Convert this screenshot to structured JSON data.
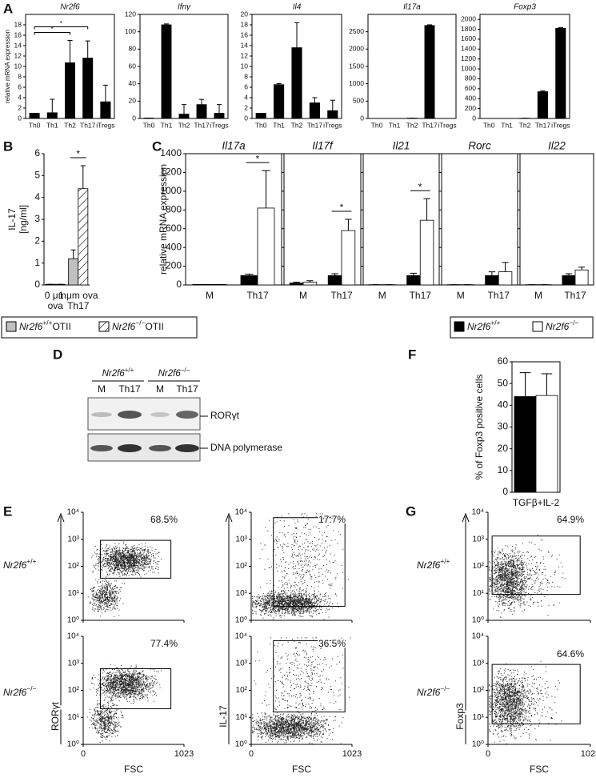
{
  "panel_labels": [
    "A",
    "B",
    "C",
    "D",
    "E",
    "F",
    "G"
  ],
  "chart_data": [
    {
      "type": "bar",
      "title": "Nr2f6",
      "ylabel": "relative mRNA expression",
      "categories": [
        "Th0",
        "Th1",
        "Th2",
        "Th17",
        "iTregs"
      ],
      "series": [
        {
          "color": "#000000",
          "values": [
            1,
            1.1,
            10.7,
            11.6,
            3.2
          ],
          "errors": [
            0,
            2.6,
            4.3,
            3.3,
            3.2
          ]
        }
      ],
      "ylim": [
        0,
        20
      ],
      "yticks": [
        0,
        2,
        4,
        6,
        8,
        10,
        12,
        14,
        16,
        18
      ],
      "significance": [
        {
          "label": "*",
          "categories": [
            "Th0",
            "Th2"
          ]
        },
        {
          "label": "*",
          "categories": [
            "Th0",
            "Th17"
          ]
        }
      ]
    },
    {
      "type": "bar",
      "title": "Ifnγ",
      "categories": [
        "Th0",
        "Th1",
        "Th2",
        "Th17",
        "iTregs"
      ],
      "series": [
        {
          "color": "#000000",
          "values": [
            0.5,
            108,
            5,
            16,
            6
          ],
          "errors": [
            0,
            1,
            11,
            6,
            10
          ]
        }
      ],
      "ylim": [
        0,
        120
      ],
      "yticks": [
        0,
        20,
        40,
        60,
        80,
        100,
        120
      ]
    },
    {
      "type": "bar",
      "title": "Il4",
      "categories": [
        "Th0",
        "Th1",
        "Th2",
        "Th17",
        "iTregs"
      ],
      "series": [
        {
          "color": "#000000",
          "values": [
            1,
            6.5,
            13.6,
            3,
            1.5
          ],
          "errors": [
            0,
            0.2,
            4.8,
            1,
            2
          ]
        }
      ],
      "ylim": [
        0,
        20
      ],
      "yticks": [
        0,
        2,
        4,
        6,
        8,
        10,
        12,
        14,
        16,
        18,
        20
      ]
    },
    {
      "type": "bar",
      "title": "Il17a",
      "categories": [
        "Th0",
        "Th1",
        "Th2",
        "Th17",
        "iTregs"
      ],
      "series": [
        {
          "color": "#000000",
          "values": [
            0,
            0,
            10,
            2680,
            0
          ],
          "errors": [
            0,
            0,
            0,
            20,
            0
          ]
        }
      ],
      "ylim": [
        0,
        3000
      ],
      "yticks": [
        0,
        500,
        1000,
        1500,
        2000,
        2500
      ]
    },
    {
      "type": "bar",
      "title": "Foxp3",
      "categories": [
        "Th0",
        "Th1",
        "Th2",
        "Th17",
        "iTregs"
      ],
      "series": [
        {
          "color": "#000000",
          "values": [
            0,
            0,
            5,
            540,
            1820
          ],
          "errors": [
            0,
            0,
            0,
            15,
            15
          ]
        }
      ],
      "ylim": [
        0,
        2100
      ],
      "yticks": [
        0,
        200,
        400,
        600,
        800,
        1000,
        1200,
        1400,
        1600,
        1800,
        2000
      ]
    },
    {
      "type": "bar",
      "ylabel": [
        "IL-17",
        "[ng/ml]"
      ],
      "categories": [
        [
          "0 μm",
          "ova"
        ],
        [
          "1 μm ova",
          "Th17"
        ]
      ],
      "series": [
        {
          "name": "Nr2f6",
          "name_sup": "+/+",
          "name_suffix": "OTII",
          "color": "#c0c0c0",
          "values": [
            0.03,
            1.2
          ],
          "errors": [
            0,
            0.4
          ]
        },
        {
          "name": "Nr2f6",
          "name_sup": "−/−",
          "name_suffix": "OTII",
          "color": "#ffffff",
          "pattern": "hatch",
          "values": [
            0.03,
            4.4
          ],
          "errors": [
            0,
            1.05
          ]
        }
      ],
      "ylim": [
        0,
        6
      ],
      "yticks": [
        0,
        1,
        2,
        3,
        4,
        5,
        6
      ],
      "significance": [
        {
          "label": "*",
          "category": [
            "1 μm ova",
            "Th17"
          ]
        }
      ]
    },
    {
      "type": "bar",
      "title": "Il17a",
      "ylabel": "relative mRNA expression",
      "categories": [
        "M",
        "Th17"
      ],
      "series": [
        {
          "name": "Nr2f6",
          "name_sup": "+/+",
          "color": "#000000",
          "values": [
            5,
            100
          ],
          "errors": [
            0,
            15
          ]
        },
        {
          "name": "Nr2f6",
          "name_sup": "−/−",
          "color": "#ffffff",
          "values": [
            5,
            820
          ],
          "errors": [
            0,
            400
          ]
        }
      ],
      "ylim": [
        0,
        1400
      ],
      "yticks": [
        0,
        200,
        400,
        600,
        800,
        1000,
        1200,
        1400
      ],
      "significance": [
        {
          "label": "*",
          "category": "Th17"
        }
      ]
    },
    {
      "type": "bar",
      "title": "Il17f",
      "categories": [
        "M",
        "Th17"
      ],
      "series": [
        {
          "color": "#000000",
          "values": [
            20,
            100
          ],
          "errors": [
            10,
            20
          ]
        },
        {
          "color": "#ffffff",
          "values": [
            30,
            580
          ],
          "errors": [
            15,
            120
          ]
        }
      ],
      "ylim": [
        0,
        1400
      ],
      "yticks": [
        0,
        200,
        400,
        600,
        800,
        1000,
        1200,
        1400
      ],
      "ytick_labels": false,
      "significance": [
        {
          "label": "*",
          "category": "Th17"
        }
      ]
    },
    {
      "type": "bar",
      "title": "Il21",
      "categories": [
        "M",
        "Th17"
      ],
      "series": [
        {
          "color": "#000000",
          "values": [
            3,
            100
          ],
          "errors": [
            0,
            25
          ]
        },
        {
          "color": "#ffffff",
          "values": [
            3,
            690
          ],
          "errors": [
            0,
            230
          ]
        }
      ],
      "ylim": [
        0,
        1400
      ],
      "yticks": [
        0,
        200,
        400,
        600,
        800,
        1000,
        1200,
        1400
      ],
      "ytick_labels": false,
      "significance": [
        {
          "label": "*",
          "category": "Th17"
        }
      ]
    },
    {
      "type": "bar",
      "title": "Rorc",
      "categories": [
        "M",
        "Th17"
      ],
      "series": [
        {
          "color": "#000000",
          "values": [
            3,
            100
          ],
          "errors": [
            0,
            40
          ]
        },
        {
          "color": "#ffffff",
          "values": [
            3,
            140
          ],
          "errors": [
            0,
            100
          ]
        }
      ],
      "ylim": [
        0,
        1400
      ],
      "yticks": [
        0,
        200,
        400,
        600,
        800,
        1000,
        1200,
        1400
      ],
      "ytick_labels": false
    },
    {
      "type": "bar",
      "title": "Il22",
      "categories": [
        "M",
        "Th17"
      ],
      "series": [
        {
          "color": "#000000",
          "values": [
            3,
            100
          ],
          "errors": [
            0,
            20
          ]
        },
        {
          "color": "#ffffff",
          "values": [
            3,
            160
          ],
          "errors": [
            0,
            30
          ]
        }
      ],
      "ylim": [
        0,
        1400
      ],
      "yticks": [
        0,
        200,
        400,
        600,
        800,
        1000,
        1200,
        1400
      ],
      "ytick_labels": false
    },
    {
      "type": "bar",
      "ylabel": "% of Foxp3 positive cells",
      "categories": [
        "TGFβ+IL-2"
      ],
      "series": [
        {
          "color": "#000000",
          "values": [
            44
          ],
          "errors": [
            11
          ]
        },
        {
          "color": "#ffffff",
          "values": [
            44.5
          ],
          "errors": [
            10
          ]
        }
      ],
      "ylim": [
        0,
        60
      ],
      "yticks": [
        0,
        10,
        20,
        30,
        40,
        50,
        60
      ]
    }
  ],
  "legend_c": [
    {
      "gene": "Nr2f6",
      "sup": "+/+"
    },
    {
      "gene": "Nr2f6",
      "sup": "−/−"
    }
  ],
  "blot": {
    "genotypes": [
      {
        "gene": "Nr2f6",
        "sup": "+/+"
      },
      {
        "gene": "Nr2f6",
        "sup": "−/−"
      }
    ],
    "lanes": [
      "M",
      "Th17",
      "M",
      "Th17"
    ],
    "bands": [
      "RORγt",
      "DNA polymerase"
    ]
  },
  "flow": {
    "xlabel": "FSC",
    "xlim": [
      0,
      1023
    ],
    "xticks": [
      0,
      1023
    ],
    "ylim": [
      1,
      10000
    ],
    "yscale": "log",
    "yticks": [
      {
        "value": 1,
        "label": "10⁰"
      },
      {
        "value": 10,
        "label": "10¹"
      },
      {
        "value": 100,
        "label": "10²"
      },
      {
        "value": 1000,
        "label": "10³"
      },
      {
        "value": 10000,
        "label": "10⁴"
      }
    ],
    "row_labels": [
      {
        "gene": "Nr2f6",
        "sup": "+/+"
      },
      {
        "gene": "Nr2f6",
        "sup": "−/−"
      }
    ],
    "panels": [
      {
        "ylabel": "RORγt",
        "gates": [
          "68.5%",
          "77.4%"
        ]
      },
      {
        "ylabel": "IL-17",
        "gates": [
          "17.7%",
          "36.5%"
        ]
      },
      {
        "ylabel": "Foxp3",
        "gates": [
          "64.9%",
          "64.6%"
        ]
      }
    ]
  }
}
